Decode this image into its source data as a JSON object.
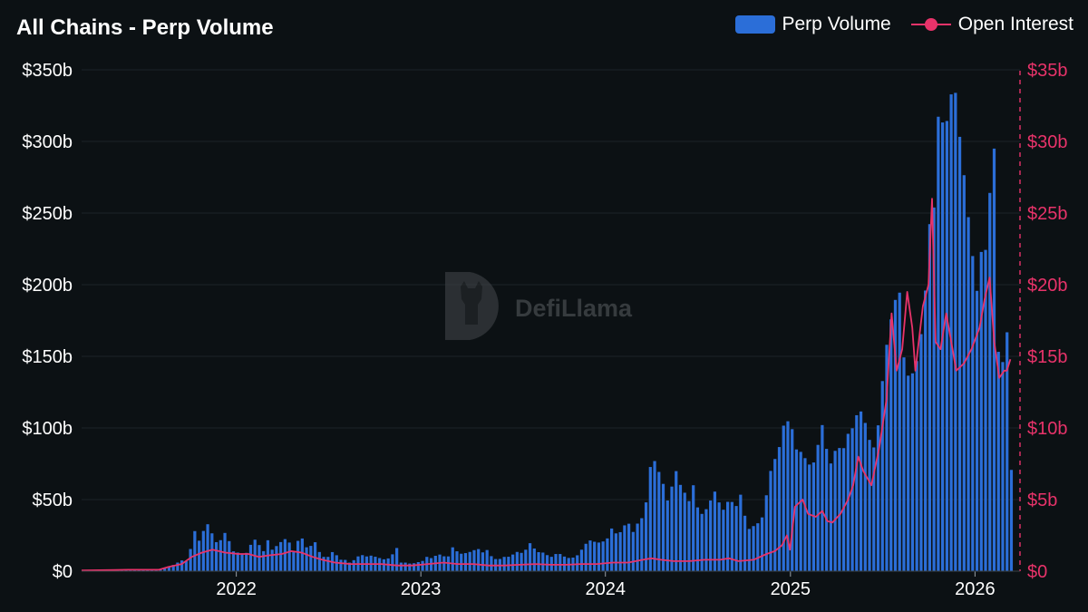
{
  "chart_data": {
    "type": "bar",
    "title": "All Chains - Perp Volume",
    "watermark": "DefiLlama",
    "legend_position": "top-right",
    "grid": true,
    "x_ticks": [
      "2022",
      "2023",
      "2024",
      "2025",
      "2026"
    ],
    "x_range": [
      "2021-03-01",
      "2026-03-31"
    ],
    "y_left": {
      "ticks": [
        "$0",
        "$50b",
        "$100b",
        "$150b",
        "$200b",
        "$250b",
        "$300b",
        "$350b"
      ],
      "range": [
        0,
        350
      ],
      "unit": "b"
    },
    "y_right": {
      "ticks": [
        "$0",
        "$5b",
        "$10b",
        "$15b",
        "$20b",
        "$25b",
        "$30b",
        "$35b"
      ],
      "range": [
        0,
        35
      ],
      "unit": "b"
    },
    "colors": {
      "bars": "#2b6ed8",
      "line": "#e8336a",
      "background": "#0c1114",
      "grid": "#1c2327"
    },
    "series": [
      {
        "name": "Perp Volume",
        "type": "bar",
        "axis": "left",
        "points": [
          [
            "2021-03-01",
            0.5
          ],
          [
            "2021-04-01",
            0.6
          ],
          [
            "2021-05-01",
            0.8
          ],
          [
            "2021-06-01",
            0.6
          ],
          [
            "2021-07-01",
            0.7
          ],
          [
            "2021-08-01",
            1.5
          ],
          [
            "2021-08-15",
            3
          ],
          [
            "2021-09-01",
            5
          ],
          [
            "2021-09-10",
            8
          ],
          [
            "2021-09-20",
            6
          ],
          [
            "2021-10-01",
            17
          ],
          [
            "2021-10-08",
            28
          ],
          [
            "2021-10-15",
            20
          ],
          [
            "2021-10-22",
            26
          ],
          [
            "2021-11-01",
            33
          ],
          [
            "2021-11-08",
            32
          ],
          [
            "2021-11-15",
            19
          ],
          [
            "2021-11-22",
            21
          ],
          [
            "2021-12-01",
            22
          ],
          [
            "2021-12-08",
            28
          ],
          [
            "2021-12-15",
            21
          ],
          [
            "2021-12-22",
            14
          ],
          [
            "2022-01-01",
            13
          ],
          [
            "2022-01-10",
            12
          ],
          [
            "2022-01-20",
            13
          ],
          [
            "2022-02-01",
            23
          ],
          [
            "2022-02-10",
            20
          ],
          [
            "2022-02-20",
            13
          ],
          [
            "2022-03-01",
            22
          ],
          [
            "2022-03-10",
            15
          ],
          [
            "2022-03-20",
            18
          ],
          [
            "2022-04-01",
            22
          ],
          [
            "2022-04-10",
            23
          ],
          [
            "2022-04-20",
            13
          ],
          [
            "2022-05-01",
            22
          ],
          [
            "2022-05-10",
            23
          ],
          [
            "2022-05-20",
            14
          ],
          [
            "2022-06-01",
            22
          ],
          [
            "2022-06-10",
            14
          ],
          [
            "2022-06-20",
            10
          ],
          [
            "2022-07-01",
            10
          ],
          [
            "2022-07-10",
            15
          ],
          [
            "2022-07-20",
            8
          ],
          [
            "2022-08-01",
            8
          ],
          [
            "2022-08-10",
            6
          ],
          [
            "2022-08-20",
            8
          ],
          [
            "2022-09-01",
            12
          ],
          [
            "2022-09-10",
            10
          ],
          [
            "2022-09-20",
            11
          ],
          [
            "2022-10-01",
            10
          ],
          [
            "2022-10-10",
            9
          ],
          [
            "2022-10-20",
            8
          ],
          [
            "2022-11-01",
            10
          ],
          [
            "2022-11-10",
            18
          ],
          [
            "2022-11-20",
            6
          ],
          [
            "2022-12-01",
            6
          ],
          [
            "2022-12-10",
            5
          ],
          [
            "2022-12-20",
            6
          ],
          [
            "2023-01-01",
            7
          ],
          [
            "2023-01-10",
            10
          ],
          [
            "2023-01-20",
            9
          ],
          [
            "2023-02-01",
            12
          ],
          [
            "2023-02-10",
            11
          ],
          [
            "2023-02-20",
            9
          ],
          [
            "2023-03-01",
            17
          ],
          [
            "2023-03-10",
            14
          ],
          [
            "2023-03-20",
            12
          ],
          [
            "2023-04-01",
            13
          ],
          [
            "2023-04-10",
            14
          ],
          [
            "2023-04-20",
            16
          ],
          [
            "2023-05-01",
            13
          ],
          [
            "2023-05-10",
            15
          ],
          [
            "2023-05-20",
            9
          ],
          [
            "2023-06-01",
            8
          ],
          [
            "2023-06-10",
            10
          ],
          [
            "2023-06-20",
            10
          ],
          [
            "2023-07-01",
            12
          ],
          [
            "2023-07-10",
            14
          ],
          [
            "2023-07-20",
            12
          ],
          [
            "2023-08-01",
            20
          ],
          [
            "2023-08-10",
            16
          ],
          [
            "2023-08-20",
            13
          ],
          [
            "2023-09-01",
            13
          ],
          [
            "2023-09-10",
            9
          ],
          [
            "2023-09-20",
            12
          ],
          [
            "2023-10-01",
            12
          ],
          [
            "2023-10-10",
            10
          ],
          [
            "2023-10-20",
            9
          ],
          [
            "2023-11-01",
            10
          ],
          [
            "2023-11-10",
            14
          ],
          [
            "2023-11-20",
            19
          ],
          [
            "2023-12-01",
            22
          ],
          [
            "2023-12-10",
            20
          ],
          [
            "2023-12-20",
            20
          ],
          [
            "2024-01-01",
            22
          ],
          [
            "2024-01-10",
            30
          ],
          [
            "2024-01-20",
            26
          ],
          [
            "2024-02-01",
            28
          ],
          [
            "2024-02-10",
            37
          ],
          [
            "2024-02-20",
            26
          ],
          [
            "2024-03-01",
            33
          ],
          [
            "2024-03-10",
            37
          ],
          [
            "2024-03-20",
            50
          ],
          [
            "2024-03-28",
            76
          ],
          [
            "2024-04-01",
            80
          ],
          [
            "2024-04-10",
            72
          ],
          [
            "2024-04-20",
            63
          ],
          [
            "2024-05-01",
            48
          ],
          [
            "2024-05-08",
            58
          ],
          [
            "2024-05-15",
            73
          ],
          [
            "2024-05-22",
            62
          ],
          [
            "2024-06-01",
            57
          ],
          [
            "2024-06-10",
            47
          ],
          [
            "2024-06-20",
            60
          ],
          [
            "2024-07-01",
            40
          ],
          [
            "2024-07-10",
            40
          ],
          [
            "2024-07-20",
            46
          ],
          [
            "2024-08-01",
            56
          ],
          [
            "2024-08-10",
            48
          ],
          [
            "2024-08-20",
            42
          ],
          [
            "2024-09-01",
            53
          ],
          [
            "2024-09-10",
            41
          ],
          [
            "2024-09-20",
            56
          ],
          [
            "2024-10-01",
            37
          ],
          [
            "2024-10-10",
            28
          ],
          [
            "2024-10-20",
            33
          ],
          [
            "2024-11-01",
            34
          ],
          [
            "2024-11-10",
            50
          ],
          [
            "2024-11-20",
            70
          ],
          [
            "2024-11-28",
            80
          ],
          [
            "2024-12-01",
            70
          ],
          [
            "2024-12-10",
            95
          ],
          [
            "2024-12-20",
            107
          ],
          [
            "2025-01-01",
            100
          ],
          [
            "2025-01-10",
            85
          ],
          [
            "2025-01-20",
            83
          ],
          [
            "2025-02-01",
            76
          ],
          [
            "2025-02-10",
            72
          ],
          [
            "2025-02-20",
            85
          ],
          [
            "2025-03-01",
            104
          ],
          [
            "2025-03-10",
            86
          ],
          [
            "2025-03-20",
            74
          ],
          [
            "2025-04-01",
            90
          ],
          [
            "2025-04-10",
            81
          ],
          [
            "2025-04-20",
            95
          ],
          [
            "2025-05-01",
            100
          ],
          [
            "2025-05-10",
            110
          ],
          [
            "2025-05-20",
            112
          ],
          [
            "2025-06-01",
            95
          ],
          [
            "2025-06-10",
            83
          ],
          [
            "2025-06-20",
            100
          ],
          [
            "2025-07-01",
            140
          ],
          [
            "2025-07-10",
            165
          ],
          [
            "2025-07-20",
            183
          ],
          [
            "2025-08-01",
            200
          ],
          [
            "2025-08-10",
            150
          ],
          [
            "2025-08-20",
            135
          ],
          [
            "2025-09-01",
            140
          ],
          [
            "2025-09-10",
            155
          ],
          [
            "2025-09-20",
            185
          ],
          [
            "2025-10-01",
            245
          ],
          [
            "2025-10-10",
            255
          ],
          [
            "2025-10-20",
            338
          ],
          [
            "2025-10-28",
            305
          ],
          [
            "2025-11-01",
            310
          ],
          [
            "2025-11-08",
            322
          ],
          [
            "2025-11-15",
            341
          ],
          [
            "2025-11-22",
            332
          ],
          [
            "2025-12-01",
            295
          ],
          [
            "2025-12-08",
            275
          ],
          [
            "2025-12-15",
            250
          ],
          [
            "2025-12-22",
            230
          ],
          [
            "2026-01-01",
            190
          ],
          [
            "2026-01-08",
            230
          ],
          [
            "2026-01-15",
            210
          ],
          [
            "2026-01-22",
            235
          ],
          [
            "2026-01-29",
            272
          ],
          [
            "2026-02-05",
            295
          ],
          [
            "2026-02-12",
            160
          ],
          [
            "2026-02-19",
            128
          ],
          [
            "2026-02-26",
            170
          ],
          [
            "2026-03-05",
            165
          ],
          [
            "2026-03-12",
            55
          ]
        ]
      },
      {
        "name": "Open Interest",
        "type": "line",
        "axis": "right",
        "points": [
          [
            "2021-03-01",
            0.05
          ],
          [
            "2021-06-01",
            0.1
          ],
          [
            "2021-08-01",
            0.1
          ],
          [
            "2021-08-20",
            0.3
          ],
          [
            "2021-09-15",
            0.5
          ],
          [
            "2021-10-05",
            1.0
          ],
          [
            "2021-10-25",
            1.3
          ],
          [
            "2021-11-15",
            1.5
          ],
          [
            "2021-12-10",
            1.3
          ],
          [
            "2022-01-05",
            1.2
          ],
          [
            "2022-01-25",
            1.2
          ],
          [
            "2022-02-15",
            1.0
          ],
          [
            "2022-03-05",
            1.1
          ],
          [
            "2022-04-01",
            1.2
          ],
          [
            "2022-04-20",
            1.4
          ],
          [
            "2022-05-10",
            1.3
          ],
          [
            "2022-06-01",
            1.0
          ],
          [
            "2022-06-20",
            0.8
          ],
          [
            "2022-07-15",
            0.6
          ],
          [
            "2022-08-15",
            0.5
          ],
          [
            "2022-09-15",
            0.5
          ],
          [
            "2022-10-15",
            0.5
          ],
          [
            "2022-11-15",
            0.4
          ],
          [
            "2022-12-15",
            0.4
          ],
          [
            "2023-01-15",
            0.5
          ],
          [
            "2023-02-15",
            0.6
          ],
          [
            "2023-03-15",
            0.5
          ],
          [
            "2023-04-15",
            0.5
          ],
          [
            "2023-05-15",
            0.4
          ],
          [
            "2023-06-15",
            0.4
          ],
          [
            "2023-07-15",
            0.45
          ],
          [
            "2023-08-15",
            0.5
          ],
          [
            "2023-09-15",
            0.45
          ],
          [
            "2023-10-15",
            0.45
          ],
          [
            "2023-11-15",
            0.5
          ],
          [
            "2023-12-15",
            0.5
          ],
          [
            "2024-01-15",
            0.6
          ],
          [
            "2024-02-15",
            0.6
          ],
          [
            "2024-03-15",
            0.8
          ],
          [
            "2024-04-01",
            0.9
          ],
          [
            "2024-04-20",
            0.8
          ],
          [
            "2024-05-15",
            0.7
          ],
          [
            "2024-06-15",
            0.7
          ],
          [
            "2024-07-15",
            0.8
          ],
          [
            "2024-08-15",
            0.8
          ],
          [
            "2024-09-01",
            0.9
          ],
          [
            "2024-09-20",
            0.7
          ],
          [
            "2024-10-20",
            0.8
          ],
          [
            "2024-11-15",
            1.2
          ],
          [
            "2024-12-01",
            1.4
          ],
          [
            "2024-12-15",
            1.8
          ],
          [
            "2024-12-25",
            2.5
          ],
          [
            "2024-12-31",
            1.5
          ],
          [
            "2025-01-10",
            4.5
          ],
          [
            "2025-01-25",
            5.0
          ],
          [
            "2025-02-05",
            4.0
          ],
          [
            "2025-02-20",
            3.8
          ],
          [
            "2025-03-05",
            4.2
          ],
          [
            "2025-03-15",
            3.5
          ],
          [
            "2025-03-25",
            3.4
          ],
          [
            "2025-04-10",
            4.0
          ],
          [
            "2025-04-25",
            5.0
          ],
          [
            "2025-05-05",
            6.0
          ],
          [
            "2025-05-15",
            8.0
          ],
          [
            "2025-05-25",
            7.0
          ],
          [
            "2025-06-10",
            6.0
          ],
          [
            "2025-06-25",
            8.5
          ],
          [
            "2025-07-10",
            12.0
          ],
          [
            "2025-07-20",
            18.0
          ],
          [
            "2025-07-30",
            14.0
          ],
          [
            "2025-08-10",
            15.5
          ],
          [
            "2025-08-20",
            19.5
          ],
          [
            "2025-08-30",
            17.0
          ],
          [
            "2025-09-05",
            14.0
          ],
          [
            "2025-09-20",
            18.5
          ],
          [
            "2025-10-01",
            20.0
          ],
          [
            "2025-10-08",
            26.0
          ],
          [
            "2025-10-15",
            16.0
          ],
          [
            "2025-10-25",
            15.5
          ],
          [
            "2025-11-05",
            18.0
          ],
          [
            "2025-11-15",
            16.0
          ],
          [
            "2025-11-25",
            14.0
          ],
          [
            "2025-12-10",
            14.5
          ],
          [
            "2025-12-25",
            15.5
          ],
          [
            "2026-01-10",
            17.0
          ],
          [
            "2026-01-20",
            19.0
          ],
          [
            "2026-01-30",
            20.5
          ],
          [
            "2026-02-08",
            16.0
          ],
          [
            "2026-02-18",
            13.5
          ],
          [
            "2026-02-28",
            14.0
          ],
          [
            "2026-03-05",
            14.0
          ],
          [
            "2026-03-12",
            14.8
          ]
        ]
      }
    ]
  }
}
